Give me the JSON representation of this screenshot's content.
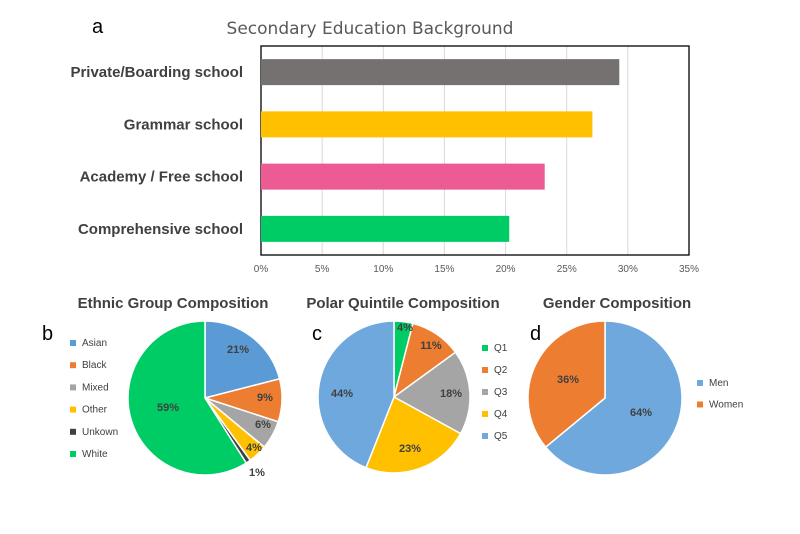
{
  "chart_data": [
    {
      "panel": "a",
      "type": "bar",
      "orientation": "horizontal",
      "title": "Secondary Education Background",
      "categories": [
        "Private/Boarding school",
        "Grammar school",
        "Academy / Free school",
        "Comprehensive school"
      ],
      "values": [
        29.3,
        27.1,
        23.2,
        20.3
      ],
      "colors": [
        "#767171",
        "#FFC000",
        "#EC5B94",
        "#00CC66"
      ],
      "xlim": [
        0,
        35
      ],
      "xticks": [
        "0%",
        "5%",
        "10%",
        "15%",
        "20%",
        "25%",
        "30%",
        "35%"
      ],
      "grid": true
    },
    {
      "panel": "b",
      "type": "pie",
      "title": "Ethnic Group Composition",
      "labels": [
        "Asian",
        "Black",
        "Mixed",
        "Other",
        "Unkown",
        "White"
      ],
      "values": [
        21,
        9,
        6,
        4,
        1,
        59
      ],
      "value_labels": [
        "21%",
        "9%",
        "6%",
        "4%",
        "1%",
        "59%"
      ],
      "colors": [
        "#5B9BD5",
        "#ED7D31",
        "#A5A5A5",
        "#FFC000",
        "#404040",
        "#00CC66"
      ],
      "legend": "left"
    },
    {
      "panel": "c",
      "type": "pie",
      "title": "Polar Quintile Composition",
      "labels": [
        "Q1",
        "Q2",
        "Q3",
        "Q4",
        "Q5"
      ],
      "values": [
        4,
        11,
        18,
        23,
        44
      ],
      "value_labels": [
        "4%",
        "11%",
        "18%",
        "23%",
        "44%"
      ],
      "colors": [
        "#00CC66",
        "#ED7D31",
        "#A5A5A5",
        "#FFC000",
        "#6FA8DC"
      ],
      "legend": "right"
    },
    {
      "panel": "d",
      "type": "pie",
      "title": "Gender Composition",
      "labels": [
        "Men",
        "Women"
      ],
      "values": [
        64,
        36
      ],
      "value_labels": [
        "64%",
        "36%"
      ],
      "colors": [
        "#6FA8DC",
        "#ED7D31"
      ],
      "legend": "right"
    }
  ]
}
